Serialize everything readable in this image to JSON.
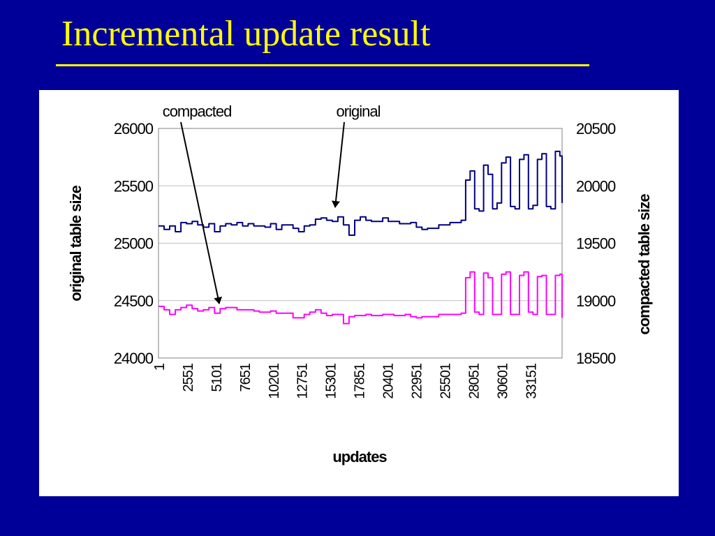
{
  "slide": {
    "title": "Incremental update result"
  },
  "chart_data": {
    "type": "line",
    "xlabel": "updates",
    "ylabel": "original table size",
    "y2label": "compacted table size",
    "xlim": [
      1,
      36000
    ],
    "ylim": [
      24000,
      26000
    ],
    "y2lim": [
      18500,
      20500
    ],
    "yticks": [
      "26000",
      "25500",
      "25000",
      "24500",
      "24000"
    ],
    "y2ticks": [
      "20500",
      "20000",
      "19500",
      "19000",
      "18500"
    ],
    "xticks": [
      "1",
      "2551",
      "5101",
      "7651",
      "10201",
      "12751",
      "15301",
      "17851",
      "20401",
      "22951",
      "25501",
      "28051",
      "30601",
      "33151"
    ],
    "grid": true,
    "annotations": [
      {
        "text": "compacted",
        "points_to": "compacted"
      },
      {
        "text": "original",
        "points_to": "original"
      }
    ],
    "series": [
      {
        "key": "original",
        "axis": "left",
        "color": "#000080",
        "x": [
          1,
          500,
          1000,
          1500,
          2000,
          2500,
          3000,
          3500,
          4000,
          4500,
          5000,
          5500,
          6000,
          6500,
          7000,
          7500,
          8000,
          8500,
          9000,
          9500,
          10000,
          10500,
          11000,
          11500,
          12000,
          12500,
          13000,
          13500,
          14000,
          14500,
          15000,
          15500,
          16000,
          16500,
          17000,
          17500,
          18000,
          18500,
          19000,
          19500,
          20000,
          20500,
          21000,
          21500,
          22000,
          22500,
          23000,
          23500,
          24000,
          24500,
          25000,
          25500,
          26000,
          26500,
          27000,
          27400,
          27800,
          28200,
          28600,
          29000,
          29400,
          29800,
          30200,
          30600,
          31000,
          31400,
          31800,
          32200,
          32600,
          33000,
          33400,
          33800,
          34200,
          34600,
          35000,
          35400,
          35800,
          36000
        ],
        "y": [
          25150,
          25120,
          25150,
          25100,
          25180,
          25170,
          25190,
          25160,
          25140,
          25170,
          25100,
          25150,
          25170,
          25160,
          25180,
          25150,
          25170,
          25150,
          25150,
          25140,
          25170,
          25120,
          25160,
          25160,
          25130,
          25100,
          25150,
          25160,
          25210,
          25220,
          25200,
          25190,
          25230,
          25160,
          25070,
          25200,
          25230,
          25200,
          25190,
          25190,
          25220,
          25190,
          25190,
          25170,
          25170,
          25180,
          25140,
          25120,
          25130,
          25130,
          25160,
          25160,
          25180,
          25180,
          25200,
          25550,
          25630,
          25300,
          25280,
          25680,
          25600,
          25300,
          25350,
          25700,
          25750,
          25320,
          25300,
          25730,
          25770,
          25300,
          25330,
          25730,
          25780,
          25320,
          25300,
          25800,
          25760,
          25350
        ]
      },
      {
        "key": "compacted",
        "axis": "right",
        "color": "#ff00ff",
        "x": [
          1,
          500,
          1000,
          1500,
          2000,
          2500,
          3000,
          3500,
          4000,
          4500,
          5000,
          5500,
          6000,
          6500,
          7000,
          7500,
          8000,
          8500,
          9000,
          9500,
          10000,
          10500,
          11000,
          11500,
          12000,
          12500,
          13000,
          13500,
          14000,
          14500,
          15000,
          15500,
          16000,
          16500,
          17000,
          17500,
          18000,
          18500,
          19000,
          19500,
          20000,
          20500,
          21000,
          21500,
          22000,
          22500,
          23000,
          23500,
          24000,
          24500,
          25000,
          25500,
          26000,
          26500,
          27000,
          27400,
          27800,
          28200,
          28600,
          29000,
          29400,
          29800,
          30200,
          30600,
          31000,
          31400,
          31800,
          32200,
          32600,
          33000,
          33400,
          33800,
          34200,
          34600,
          35000,
          35400,
          35800,
          36000
        ],
        "y": [
          18950,
          18920,
          18880,
          18920,
          18940,
          18960,
          18930,
          18910,
          18920,
          18940,
          18890,
          18930,
          18940,
          18940,
          18920,
          18920,
          18920,
          18910,
          18900,
          18900,
          18910,
          18890,
          18890,
          18890,
          18850,
          18850,
          18880,
          18900,
          18920,
          18890,
          18870,
          18880,
          18880,
          18800,
          18860,
          18870,
          18870,
          18880,
          18870,
          18870,
          18880,
          18880,
          18870,
          18870,
          18880,
          18860,
          18850,
          18860,
          18860,
          18860,
          18880,
          18880,
          18880,
          18880,
          18890,
          19200,
          19250,
          18900,
          18880,
          19240,
          19200,
          18880,
          18880,
          19230,
          19250,
          18880,
          18880,
          19220,
          19250,
          18900,
          18880,
          19210,
          19220,
          18880,
          18880,
          19220,
          19230,
          18850
        ]
      }
    ]
  }
}
